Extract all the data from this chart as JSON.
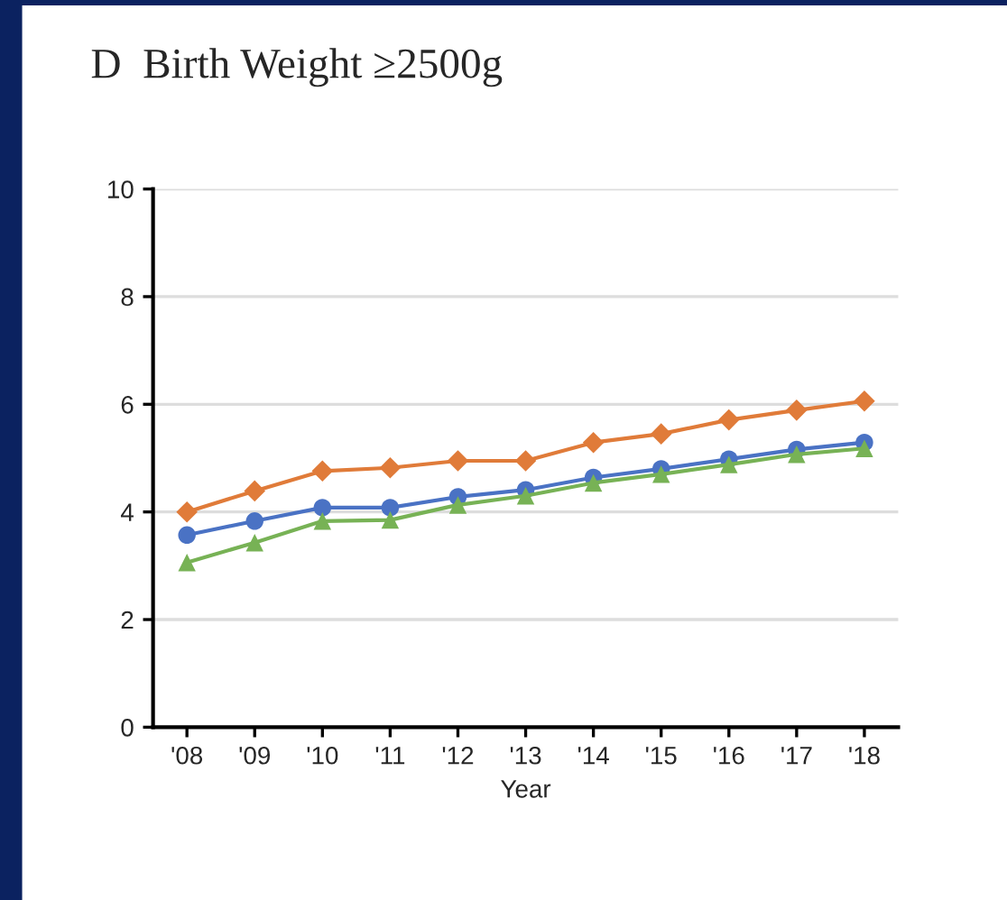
{
  "chart_data": {
    "type": "line",
    "title": "D  Birth Weight ≥2500g",
    "xlabel": "Year",
    "categories": [
      "'08",
      "'09",
      "'10",
      "'11",
      "'12",
      "'13",
      "'14",
      "'15",
      "'16",
      "'17",
      "'18"
    ],
    "series": [
      {
        "color": "#e07b39",
        "marker": "diamond",
        "values": [
          4.0,
          4.39,
          4.76,
          4.82,
          4.95,
          4.95,
          5.29,
          5.45,
          5.71,
          5.89,
          6.06
        ]
      },
      {
        "color": "#4a72c4",
        "marker": "circle",
        "values": [
          3.57,
          3.83,
          4.08,
          4.08,
          4.28,
          4.41,
          4.64,
          4.8,
          4.98,
          5.16,
          5.29
        ]
      },
      {
        "color": "#77b255",
        "marker": "triangle",
        "values": [
          3.06,
          3.43,
          3.83,
          3.85,
          4.13,
          4.3,
          4.54,
          4.7,
          4.88,
          5.07,
          5.18
        ]
      }
    ],
    "ylim": [
      0,
      10
    ],
    "yticks": [
      0,
      2,
      4,
      6,
      8,
      10
    ],
    "grid": "y",
    "line_style": "solid"
  }
}
